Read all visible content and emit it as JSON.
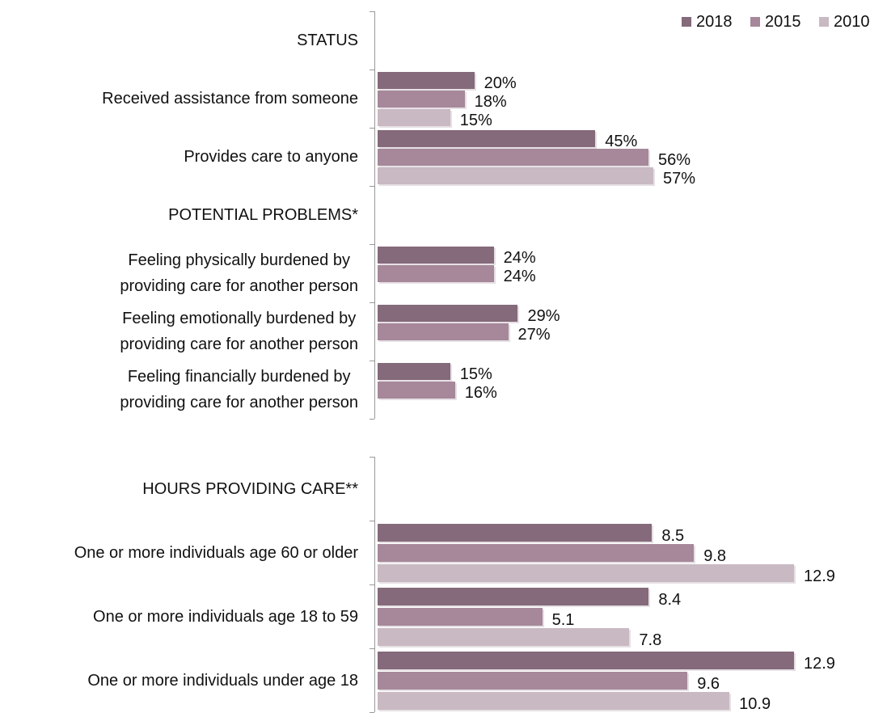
{
  "chart_data": [
    {
      "type": "bar",
      "categories": [
        "STATUS",
        "Received assistance from someone",
        "Provides care to anyone",
        "POTENTIAL PROBLEMS*",
        "Feeling physically burdened by\nproviding care for another person",
        "Feeling emotionally burdened by\nproviding care for another person",
        "Feeling financially burdened by\nproviding care for another person"
      ],
      "series": [
        {
          "name": "2018",
          "color": "#846a7a",
          "values": [
            null,
            20,
            45,
            null,
            24,
            29,
            15
          ],
          "value_labels": [
            null,
            "20%",
            "45%",
            null,
            "24%",
            "29%",
            "15%"
          ]
        },
        {
          "name": "2015",
          "color": "#a6889a",
          "values": [
            null,
            18,
            56,
            null,
            24,
            27,
            16
          ],
          "value_labels": [
            null,
            "18%",
            "56%",
            null,
            "24%",
            "27%",
            "16%"
          ]
        },
        {
          "name": "2010",
          "color": "#c9b9c3",
          "values": [
            null,
            15,
            57,
            null,
            null,
            null,
            null
          ],
          "value_labels": [
            null,
            "15%",
            "57%",
            null,
            null,
            null,
            null
          ]
        }
      ],
      "legend": "top-right"
    },
    {
      "type": "bar",
      "categories": [
        "HOURS PROVIDING CARE**",
        "One or more individuals age 60 or older",
        "One or more individuals age 18 to 59",
        "One or more individuals under age 18"
      ],
      "series": [
        {
          "color": "#846a7a",
          "values": [
            null,
            8.5,
            8.4,
            12.9
          ]
        },
        {
          "color": "#a6889a",
          "values": [
            null,
            9.8,
            5.1,
            9.6
          ]
        },
        {
          "color": "#c9b9c3",
          "values": [
            null,
            12.9,
            7.8,
            10.9
          ]
        }
      ]
    }
  ]
}
